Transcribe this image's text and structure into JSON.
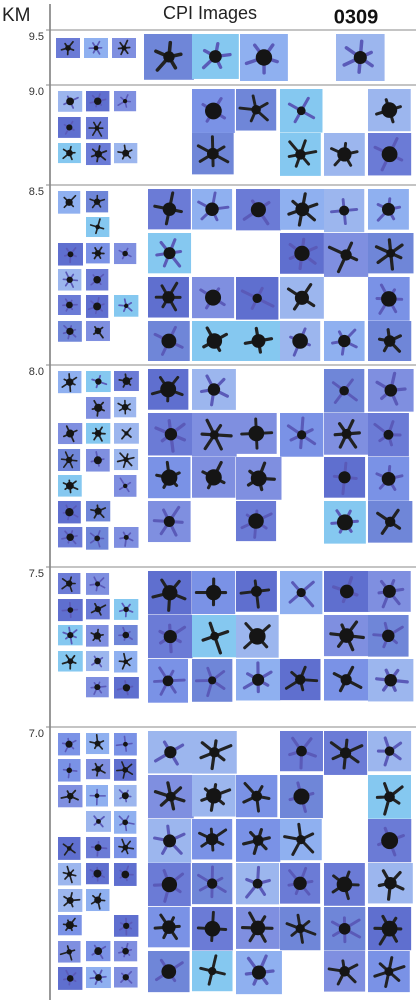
{
  "header": {
    "axis_label": "KM",
    "title": "CPI Images",
    "flight_id": "0309"
  },
  "altitudes": [
    "9.5",
    "9.0",
    "8.5",
    "8.0",
    "7.5",
    "7.0"
  ]
}
